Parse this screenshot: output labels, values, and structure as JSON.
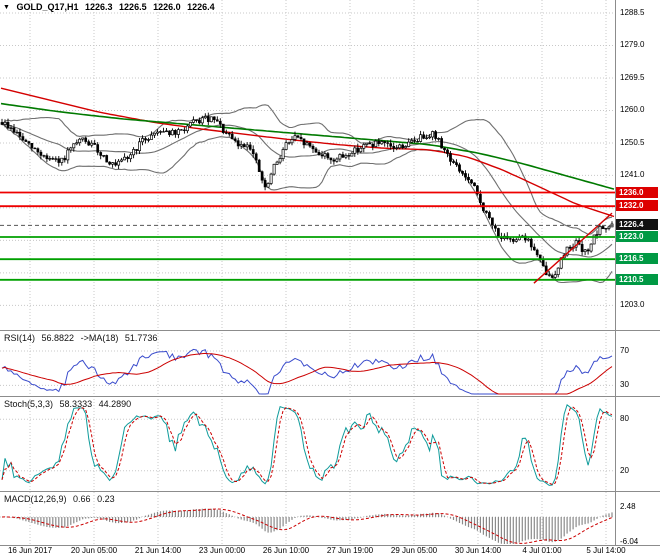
{
  "header": {
    "collapse_icon": "▼",
    "symbol": "GOLD_Q17,H1",
    "ohlc": [
      "1226.3",
      "1226.5",
      "1226.0",
      "1226.4"
    ]
  },
  "colors": {
    "background": "#ffffff",
    "grid": "#c8c8c8",
    "candle": "#000000",
    "bollinger": "#6f6f6f",
    "ma_red": "#d40000",
    "ma_green": "#007a00",
    "level_red": "#ee0000",
    "level_green": "#00a000",
    "current_price_line": "#555555",
    "badge_red": "#dd0000",
    "badge_green": "#009944",
    "badge_black": "#111111",
    "rsi_line": "#3a4ccc",
    "signal_red": "#cc0000",
    "stoch_line": "#0f9b9b",
    "macd_hist": "#8a8a8a",
    "separator": "#8c8c8c",
    "text": "#000000"
  },
  "chart_data": {
    "type": "candlestick",
    "symbol": "GOLD_Q17",
    "timeframe": "H1",
    "candle_count": 205,
    "y_axis_labels": [
      {
        "text": "1288.5",
        "price": 1288.5
      },
      {
        "text": "1279.0",
        "price": 1279.0
      },
      {
        "text": "1269.5",
        "price": 1269.5
      },
      {
        "text": "1260.0",
        "price": 1260.0
      },
      {
        "text": "1250.5",
        "price": 1250.5
      },
      {
        "text": "1241.0",
        "price": 1241.0
      },
      {
        "text": "1203.0",
        "price": 1203.0
      }
    ],
    "y_gridline_prices": [
      1288.5,
      1279.0,
      1269.5,
      1260.0,
      1250.5,
      1241.0,
      1231.5,
      1222.0,
      1212.5,
      1203.0
    ],
    "x_axis_labels": [
      "16 Jun 2017",
      "20 Jun 05:00",
      "21 Jun 14:00",
      "23 Jun 00:00",
      "26 Jun 10:00",
      "27 Jun 19:00",
      "29 Jun 05:00",
      "30 Jun 14:00",
      "4 Jul 01:00",
      "5 Jul 14:00"
    ],
    "levels": {
      "resistance": [
        1236.0,
        1232.0
      ],
      "support": [
        1223.0,
        1216.5,
        1210.5
      ],
      "current_price": 1226.4
    },
    "price_badges": [
      {
        "text": "1236.0",
        "price": 1236.0,
        "style": "red"
      },
      {
        "text": "1232.0",
        "price": 1232.0,
        "style": "red"
      },
      {
        "text": "1226.4",
        "price": 1226.4,
        "style": "black"
      },
      {
        "text": "1223.0",
        "price": 1223.0,
        "style": "green"
      },
      {
        "text": "1216.5",
        "price": 1216.5,
        "style": "green"
      },
      {
        "text": "1210.5",
        "price": 1210.5,
        "style": "green"
      }
    ],
    "price_path": [
      [
        0.0,
        1256.5
      ],
      [
        0.02,
        1254.0
      ],
      [
        0.045,
        1249.5
      ],
      [
        0.07,
        1246.5
      ],
      [
        0.095,
        1244.5
      ],
      [
        0.11,
        1248.0
      ],
      [
        0.13,
        1251.5
      ],
      [
        0.15,
        1249.5
      ],
      [
        0.17,
        1246.0
      ],
      [
        0.185,
        1243.5
      ],
      [
        0.205,
        1246.0
      ],
      [
        0.23,
        1251.0
      ],
      [
        0.26,
        1254.5
      ],
      [
        0.285,
        1253.0
      ],
      [
        0.31,
        1256.0
      ],
      [
        0.33,
        1257.5
      ],
      [
        0.35,
        1257.0
      ],
      [
        0.37,
        1252.5
      ],
      [
        0.39,
        1249.5
      ],
      [
        0.405,
        1250.5
      ],
      [
        0.42,
        1243.0
      ],
      [
        0.432,
        1236.5
      ],
      [
        0.445,
        1243.0
      ],
      [
        0.465,
        1250.0
      ],
      [
        0.48,
        1252.0
      ],
      [
        0.5,
        1250.0
      ],
      [
        0.52,
        1247.5
      ],
      [
        0.545,
        1245.5
      ],
      [
        0.565,
        1247.0
      ],
      [
        0.59,
        1249.5
      ],
      [
        0.615,
        1250.5
      ],
      [
        0.64,
        1249.0
      ],
      [
        0.665,
        1250.0
      ],
      [
        0.69,
        1252.5
      ],
      [
        0.705,
        1253.5
      ],
      [
        0.72,
        1250.0
      ],
      [
        0.74,
        1244.5
      ],
      [
        0.76,
        1240.5
      ],
      [
        0.775,
        1237.0
      ],
      [
        0.79,
        1231.0
      ],
      [
        0.805,
        1226.0
      ],
      [
        0.82,
        1222.5
      ],
      [
        0.835,
        1221.5
      ],
      [
        0.85,
        1224.0
      ],
      [
        0.862,
        1222.0
      ],
      [
        0.875,
        1218.5
      ],
      [
        0.888,
        1213.5
      ],
      [
        0.9,
        1210.5
      ],
      [
        0.912,
        1214.5
      ],
      [
        0.925,
        1219.5
      ],
      [
        0.94,
        1221.5
      ],
      [
        0.955,
        1218.0
      ],
      [
        0.968,
        1222.0
      ],
      [
        0.982,
        1225.5
      ],
      [
        1.0,
        1226.4
      ]
    ],
    "ma_red_path": [
      [
        0,
        1266.5
      ],
      [
        0.08,
        1263.0
      ],
      [
        0.16,
        1259.5
      ],
      [
        0.25,
        1256.5
      ],
      [
        0.33,
        1254.5
      ],
      [
        0.4,
        1253.0
      ],
      [
        0.47,
        1251.5
      ],
      [
        0.55,
        1250.0
      ],
      [
        0.62,
        1249.0
      ],
      [
        0.7,
        1248.5
      ],
      [
        0.76,
        1246.5
      ],
      [
        0.82,
        1242.5
      ],
      [
        0.88,
        1237.5
      ],
      [
        0.94,
        1232.5
      ],
      [
        1.0,
        1229.0
      ]
    ],
    "ma_green_path": [
      [
        0,
        1262.0
      ],
      [
        0.1,
        1259.5
      ],
      [
        0.2,
        1257.5
      ],
      [
        0.3,
        1256.0
      ],
      [
        0.4,
        1254.5
      ],
      [
        0.5,
        1253.0
      ],
      [
        0.6,
        1251.5
      ],
      [
        0.7,
        1250.0
      ],
      [
        0.78,
        1247.5
      ],
      [
        0.85,
        1244.5
      ],
      [
        0.92,
        1241.0
      ],
      [
        1.0,
        1237.0
      ]
    ],
    "trendline": {
      "points": [
        [
          0.872,
          1209.5
        ],
        [
          1.0,
          1230.0
        ]
      ],
      "color": "red"
    },
    "indicator_panels": {
      "rsi": {
        "label_name": "RSI(14)",
        "label_value": "56.8822",
        "ma_label": "->MA(18)",
        "ma_value": "51.7736",
        "axis_labels": [
          "70",
          "30"
        ],
        "levels": [
          70,
          30
        ],
        "params": {
          "period": 14,
          "ma_period": 18
        }
      },
      "stoch": {
        "label_name": "Stoch(5,3,3)",
        "label_value": "58.3333",
        "signal_value": "44.2890",
        "axis_labels": [
          "80",
          "20"
        ],
        "levels": [
          80,
          20
        ],
        "params": {
          "k": 5,
          "d": 3,
          "slowing": 3
        }
      },
      "macd": {
        "label_name": "MACD(12,26,9)",
        "label_value": "0.66",
        "signal_value": "0.23",
        "axis_labels": [
          {
            "text": "2.48",
            "value": 2.48
          },
          {
            "text": "-6.04",
            "value": -6.04
          }
        ],
        "params": {
          "fast": 12,
          "slow": 26,
          "signal": 9
        }
      }
    }
  }
}
